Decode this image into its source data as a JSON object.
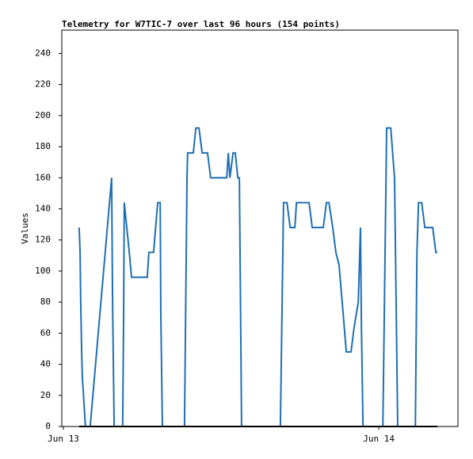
{
  "chart_data": {
    "type": "line",
    "title": "Telemetry for W7TIC-7 over last 96 hours (154 points)",
    "y_label": "Values",
    "x": [
      0.05,
      0.053,
      0.055,
      0.058,
      0.06,
      0.065,
      0.07,
      0.085,
      0.153,
      0.156,
      0.161,
      0.188,
      0.191,
      0.193,
      0.201,
      0.209,
      0.216,
      0.266,
      0.271,
      0.286,
      0.299,
      0.307,
      0.309,
      0.314,
      0.384,
      0.392,
      0.394,
      0.412,
      0.42,
      0.43,
      0.44,
      0.457,
      0.467,
      0.518,
      0.523,
      0.528,
      0.533,
      0.538,
      0.545,
      0.553,
      0.558,
      0.563,
      0.565,
      0.688,
      0.693,
      0.698,
      0.709,
      0.719,
      0.734,
      0.739,
      0.779,
      0.789,
      0.824,
      0.834,
      0.842,
      0.854,
      0.864,
      0.874,
      0.884,
      0.897,
      0.912,
      0.922,
      0.935,
      0.942,
      0.945,
      0.95,
      1.013,
      1.02,
      1.025,
      1.038,
      1.05,
      1.055,
      1.06,
      1.116,
      1.121,
      1.126,
      1.136,
      1.146,
      1.171,
      1.181,
      1.186
    ],
    "series": [
      {
        "color": "#1f6fb4",
        "values": [
          128,
          112,
          80,
          48,
          32,
          16,
          0,
          0,
          160,
          80,
          0,
          0,
          72,
          144,
          128,
          112,
          96,
          96,
          112,
          112,
          144,
          144,
          72,
          0,
          0,
          160,
          176,
          176,
          192,
          192,
          176,
          176,
          160,
          160,
          176,
          160,
          168,
          176,
          176,
          160,
          160,
          48,
          0,
          0,
          72,
          144,
          144,
          128,
          128,
          144,
          144,
          128,
          128,
          144,
          144,
          128,
          112,
          104,
          80,
          48,
          48,
          64,
          80,
          128,
          64,
          0,
          0,
          112,
          192,
          192,
          160,
          80,
          0,
          0,
          112,
          144,
          144,
          128,
          128,
          112,
          112
        ]
      },
      {
        "color": "#000000",
        "x": [
          0.05,
          1.186
        ],
        "values": [
          0,
          0
        ]
      }
    ],
    "xlim": [
      -0.005,
      1.251
    ],
    "xticks": [
      {
        "value": 0,
        "label": "Jun 13"
      },
      {
        "value": 1,
        "label": "Jun 14"
      }
    ],
    "ylim": [
      0,
      255
    ],
    "yticks": [
      0,
      20,
      40,
      60,
      80,
      100,
      120,
      140,
      160,
      180,
      200,
      220,
      240
    ]
  }
}
